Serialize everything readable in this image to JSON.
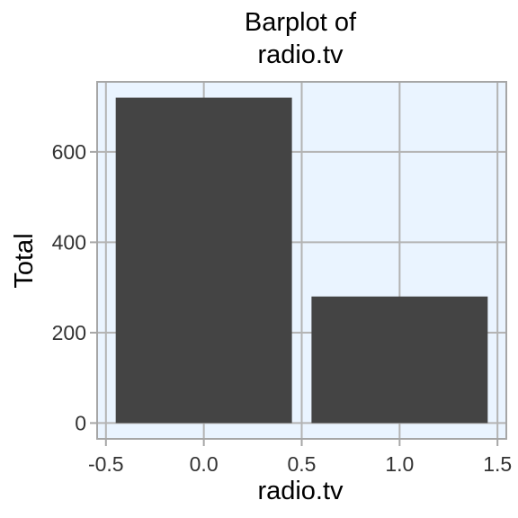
{
  "chart_data": {
    "type": "bar",
    "title_lines": [
      "Barplot of",
      "radio.tv"
    ],
    "xlabel": "radio.tv",
    "ylabel": "Total",
    "x": [
      0,
      1
    ],
    "values": [
      720,
      280
    ],
    "bar_width": 0.9,
    "xlim": [
      -0.545,
      1.545
    ],
    "ylim": [
      -35,
      755
    ],
    "xticks": [
      -0.5,
      0.0,
      0.5,
      1.0,
      1.5
    ],
    "xtick_labels": [
      "-0.5",
      "0.0",
      "0.5",
      "1.0",
      "1.5"
    ],
    "yticks": [
      0,
      200,
      400,
      600
    ],
    "ytick_labels": [
      "0",
      "200",
      "400",
      "600"
    ],
    "grid": true,
    "colors": {
      "bar": "#444444",
      "panel_background": "#eaf4ff",
      "grid": "#b3b3b3",
      "border": "#a6a6a6"
    }
  }
}
